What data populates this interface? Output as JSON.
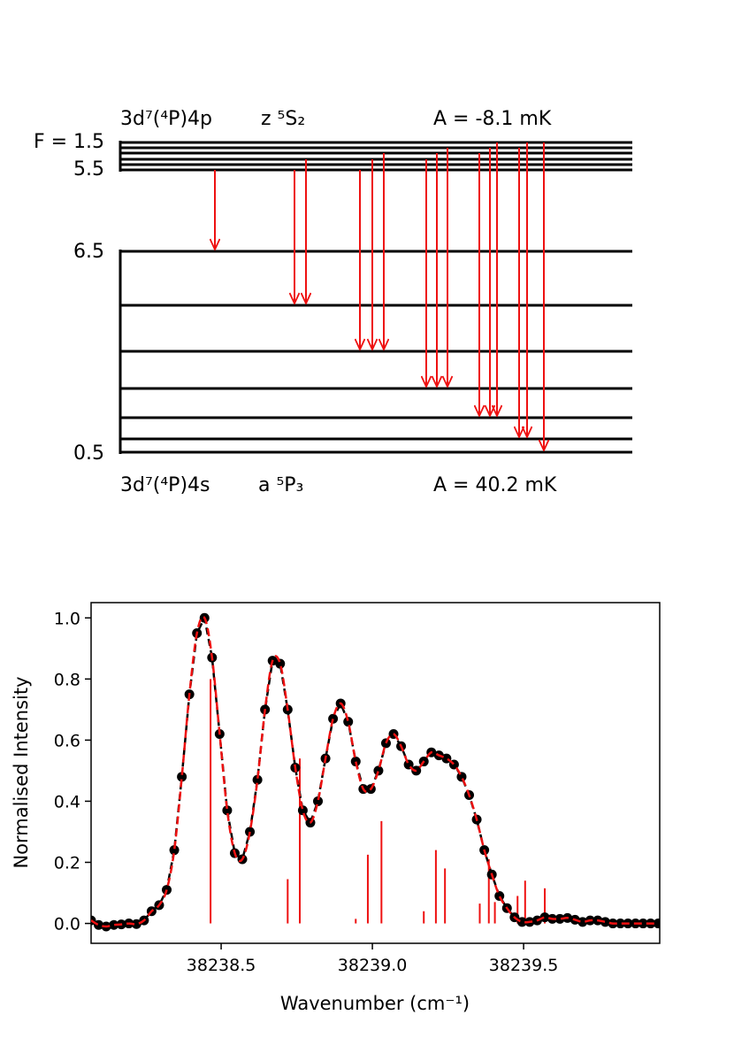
{
  "energy_diagram": {
    "upper": {
      "configuration": "3d⁷(⁴P)4p",
      "term": "z ⁵S₂",
      "hyperfine_constant": "A = -8.1 mK",
      "f_label_top": "F = 1.5",
      "f_label_bottom": "5.5"
    },
    "lower": {
      "configuration": "3d⁷(⁴P)4s",
      "term": "a ⁵P₃",
      "hyperfine_constant": "A = 40.2 mK",
      "f_label_top": "6.5",
      "f_label_bottom": "0.5"
    },
    "arrow_color": "#ee1111"
  },
  "chart_data": {
    "type": "line",
    "xlabel": "Wavenumber (cm⁻¹)",
    "ylabel": "Normalised Intensity",
    "xlim": [
      38238.07,
      38239.95
    ],
    "ylim": [
      -0.065,
      1.05
    ],
    "xticks": [
      {
        "value": 38238.5,
        "label": "38238.5"
      },
      {
        "value": 38239.0,
        "label": "38239.0"
      },
      {
        "value": 38239.5,
        "label": "38239.5"
      }
    ],
    "yticks": [
      {
        "value": 0.0,
        "label": "0.0"
      },
      {
        "value": 0.2,
        "label": "0.2"
      },
      {
        "value": 0.4,
        "label": "0.4"
      },
      {
        "value": 0.6,
        "label": "0.6"
      },
      {
        "value": 0.8,
        "label": "0.8"
      },
      {
        "value": 1.0,
        "label": "1.0"
      }
    ],
    "series": [
      {
        "style": "points-black-dashed",
        "color": "#000000",
        "x": [
          38238.07,
          38238.095,
          38238.12,
          38238.145,
          38238.17,
          38238.195,
          38238.22,
          38238.245,
          38238.27,
          38238.295,
          38238.32,
          38238.345,
          38238.37,
          38238.395,
          38238.42,
          38238.445,
          38238.47,
          38238.495,
          38238.52,
          38238.545,
          38238.57,
          38238.595,
          38238.62,
          38238.645,
          38238.67,
          38238.695,
          38238.72,
          38238.745,
          38238.77,
          38238.795,
          38238.82,
          38238.845,
          38238.87,
          38238.895,
          38238.92,
          38238.945,
          38238.97,
          38238.995,
          38239.02,
          38239.045,
          38239.07,
          38239.095,
          38239.12,
          38239.145,
          38239.17,
          38239.195,
          38239.22,
          38239.245,
          38239.27,
          38239.295,
          38239.32,
          38239.345,
          38239.37,
          38239.395,
          38239.42,
          38239.445,
          38239.47,
          38239.495,
          38239.52,
          38239.545,
          38239.57,
          38239.595,
          38239.62,
          38239.645,
          38239.67,
          38239.695,
          38239.72,
          38239.745,
          38239.77,
          38239.795,
          38239.82,
          38239.845,
          38239.87,
          38239.895,
          38239.92,
          38239.945
        ],
        "y": [
          0.01,
          -0.005,
          -0.01,
          -0.005,
          -0.003,
          0.0,
          -0.002,
          0.01,
          0.04,
          0.06,
          0.11,
          0.24,
          0.48,
          0.75,
          0.95,
          1.0,
          0.87,
          0.62,
          0.37,
          0.23,
          0.21,
          0.3,
          0.47,
          0.7,
          0.86,
          0.85,
          0.7,
          0.51,
          0.37,
          0.33,
          0.4,
          0.54,
          0.67,
          0.72,
          0.66,
          0.53,
          0.44,
          0.44,
          0.5,
          0.59,
          0.62,
          0.58,
          0.52,
          0.5,
          0.53,
          0.56,
          0.55,
          0.54,
          0.52,
          0.48,
          0.42,
          0.34,
          0.24,
          0.16,
          0.09,
          0.05,
          0.02,
          0.005,
          0.005,
          0.01,
          0.02,
          0.015,
          0.015,
          0.018,
          0.012,
          0.005,
          0.01,
          0.01,
          0.005,
          0.0,
          0.0,
          0.0,
          0.0,
          0.0,
          0.0,
          0.0
        ]
      },
      {
        "style": "fit-red-dashed",
        "color": "#ee1111"
      }
    ],
    "stick_spectrum": {
      "color": "#ee1111",
      "x": [
        38238.465,
        38238.72,
        38238.76,
        38238.945,
        38238.985,
        38239.03,
        38239.17,
        38239.21,
        38239.24,
        38239.355,
        38239.385,
        38239.405,
        38239.48,
        38239.505,
        38239.57
      ],
      "y": [
        0.8,
        0.145,
        0.54,
        0.015,
        0.225,
        0.335,
        0.04,
        0.24,
        0.18,
        0.065,
        0.21,
        0.07,
        0.09,
        0.14,
        0.115
      ]
    }
  }
}
